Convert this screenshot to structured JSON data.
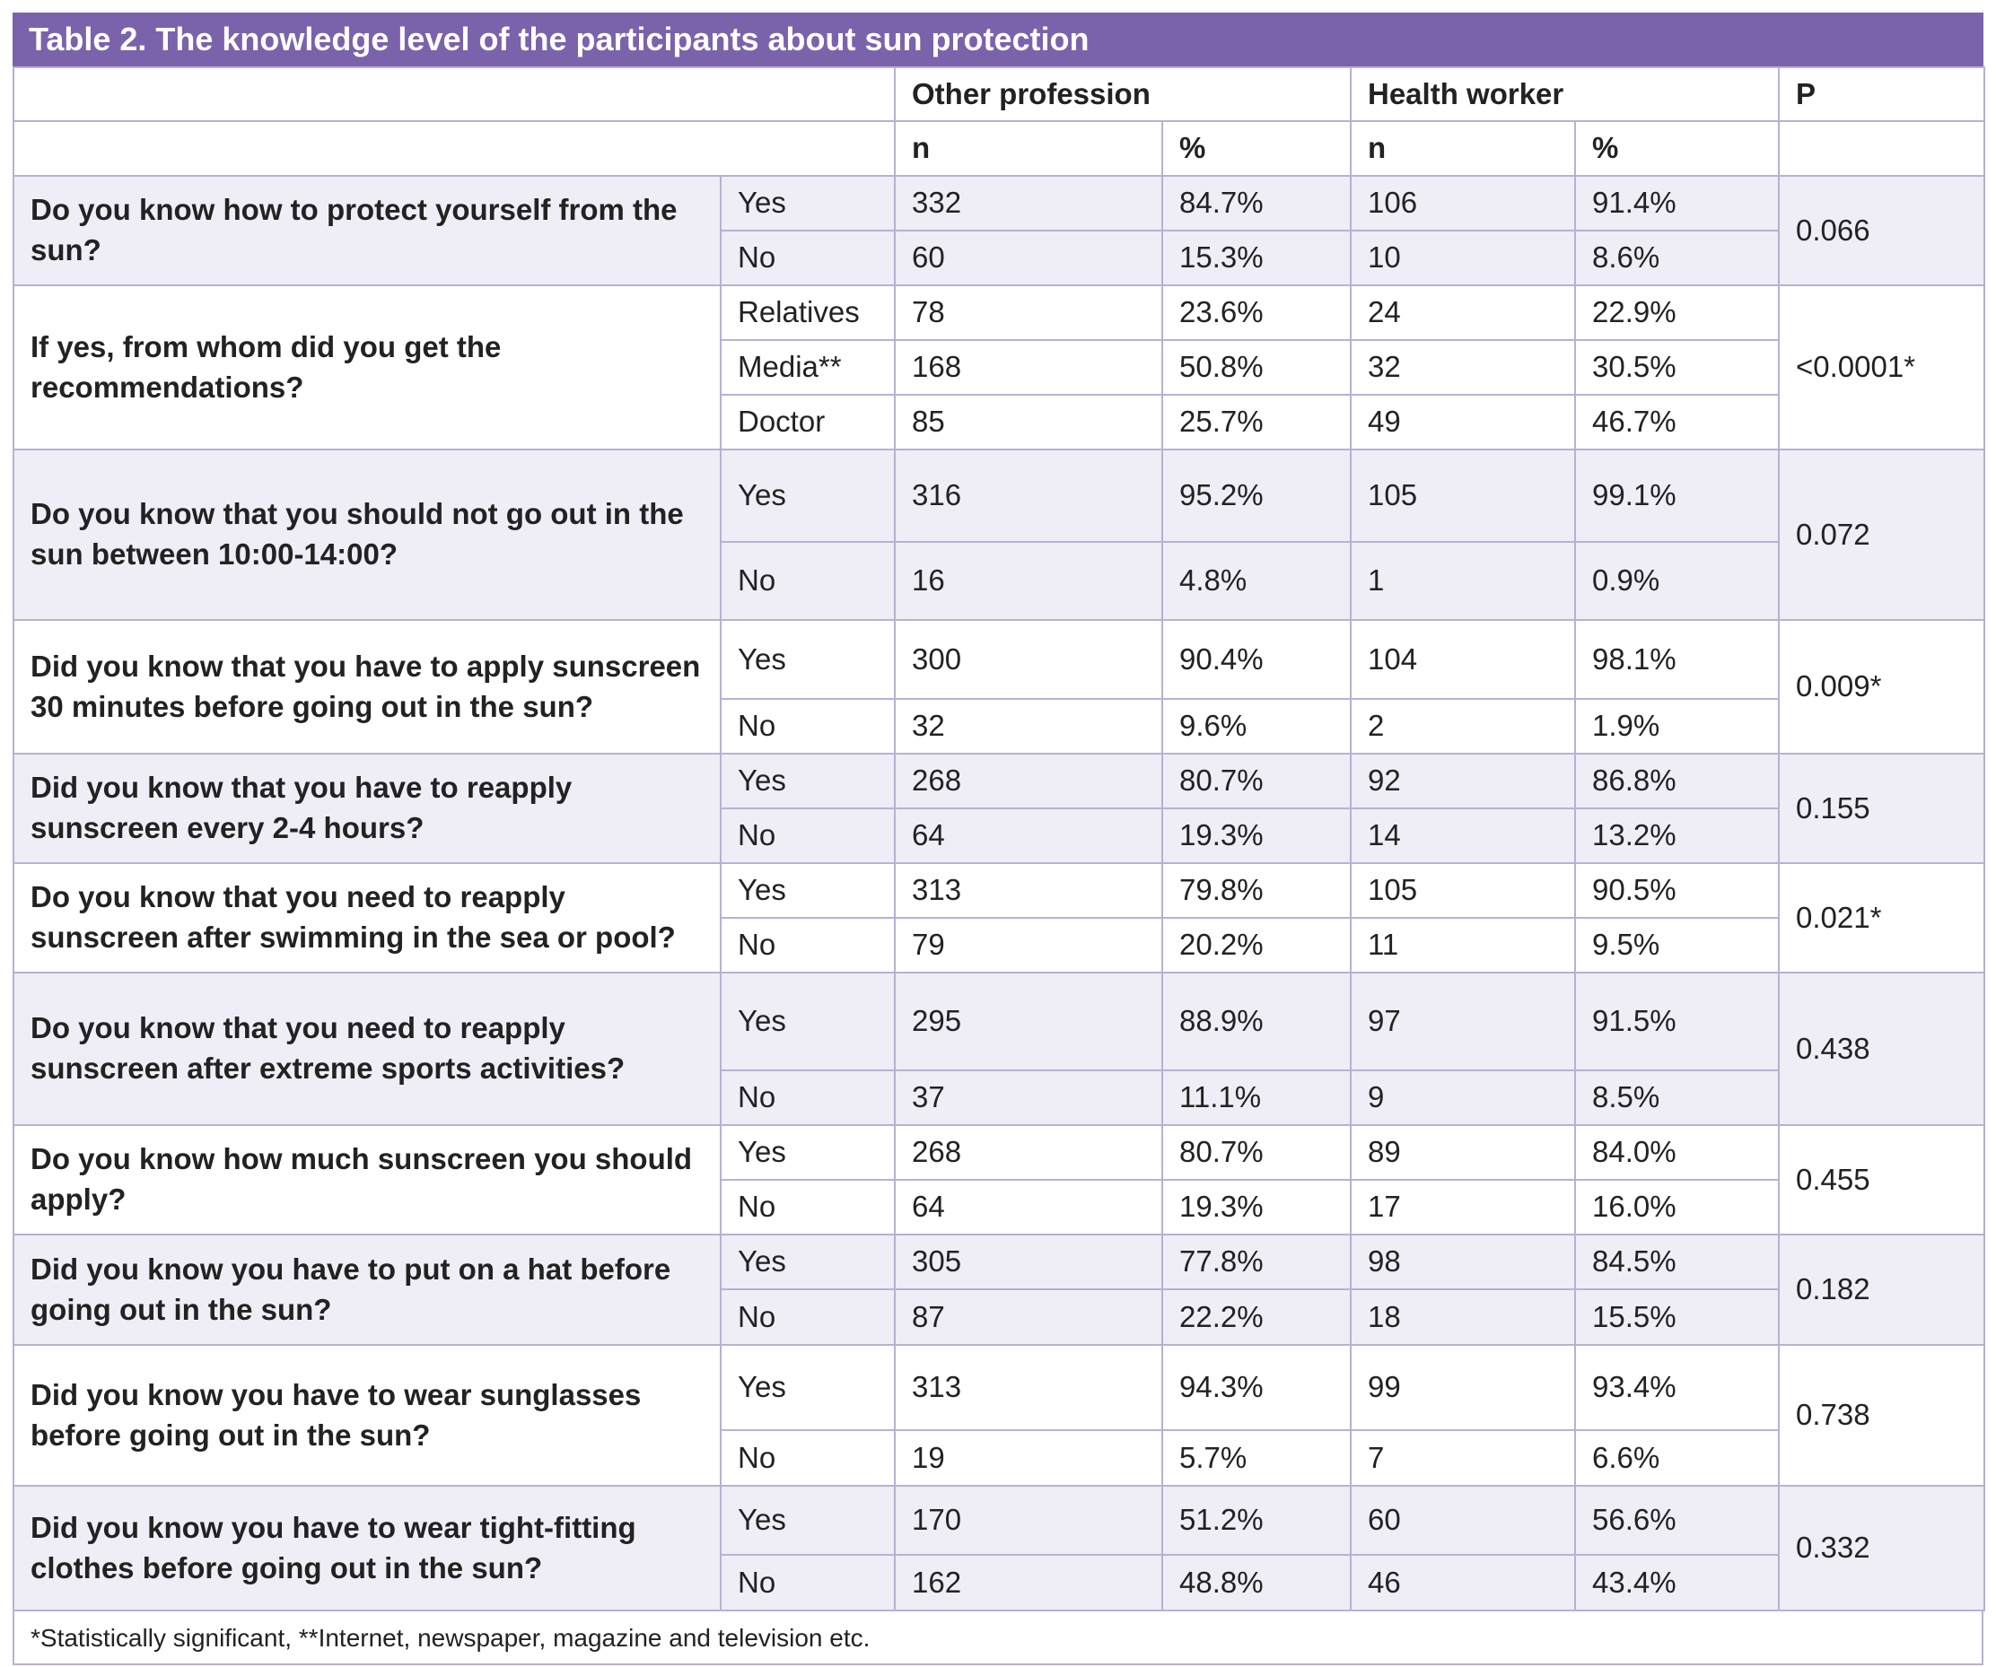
{
  "title": "Table 2. The knowledge level of the participants about sun protection",
  "header": {
    "group1": "Other profession",
    "group2": "Health worker",
    "p": "P",
    "n": "n",
    "pct": "%"
  },
  "rows": [
    {
      "question": "Do you know how to protect yourself from the sun?",
      "p": "0.066",
      "answers": [
        {
          "label": "Yes",
          "on": "332",
          "op": "84.7%",
          "hn": "106",
          "hp": "91.4%"
        },
        {
          "label": "No",
          "on": "60",
          "op": "15.3%",
          "hn": "10",
          "hp": "8.6%"
        }
      ]
    },
    {
      "question": "If yes, from whom did you get the recommendations?",
      "p": "<0.0001*",
      "answers": [
        {
          "label": "Relatives",
          "on": "78",
          "op": "23.6%",
          "hn": "24",
          "hp": "22.9%"
        },
        {
          "label": "Media**",
          "on": "168",
          "op": "50.8%",
          "hn": "32",
          "hp": "30.5%"
        },
        {
          "label": "Doctor",
          "on": "85",
          "op": "25.7%",
          "hn": "49",
          "hp": "46.7%"
        }
      ]
    },
    {
      "question": "Do you know that you should not go out in the sun between 10:00-14:00?",
      "p": "0.072",
      "answers": [
        {
          "label": "Yes",
          "on": "316",
          "op": "95.2%",
          "hn": "105",
          "hp": "99.1%"
        },
        {
          "label": "No",
          "on": "16",
          "op": "4.8%",
          "hn": "1",
          "hp": "0.9%"
        }
      ]
    },
    {
      "question": "Did you know that you have to apply sunscreen 30 minutes before going out in the sun?",
      "p": "0.009*",
      "answers": [
        {
          "label": "Yes",
          "on": "300",
          "op": "90.4%",
          "hn": "104",
          "hp": "98.1%"
        },
        {
          "label": "No",
          "on": "32",
          "op": "9.6%",
          "hn": "2",
          "hp": "1.9%"
        }
      ]
    },
    {
      "question": "Did you know that you have to reapply sunscreen every 2-4 hours?",
      "p": "0.155",
      "answers": [
        {
          "label": "Yes",
          "on": "268",
          "op": "80.7%",
          "hn": "92",
          "hp": "86.8%"
        },
        {
          "label": "No",
          "on": "64",
          "op": "19.3%",
          "hn": "14",
          "hp": "13.2%"
        }
      ]
    },
    {
      "question": "Do you know that you need to reapply sunscreen after swimming in the sea or pool?",
      "p": "0.021*",
      "answers": [
        {
          "label": "Yes",
          "on": "313",
          "op": "79.8%",
          "hn": "105",
          "hp": "90.5%"
        },
        {
          "label": "No",
          "on": "79",
          "op": "20.2%",
          "hn": "11",
          "hp": "9.5%"
        }
      ]
    },
    {
      "question": "Do you know that you need to reapply sunscreen after extreme sports activities?",
      "p": "0.438",
      "answers": [
        {
          "label": "Yes",
          "on": "295",
          "op": "88.9%",
          "hn": "97",
          "hp": "91.5%"
        },
        {
          "label": "No",
          "on": "37",
          "op": "11.1%",
          "hn": "9",
          "hp": "8.5%"
        }
      ]
    },
    {
      "question": "Do you know how much sunscreen you should apply?",
      "p": "0.455",
      "answers": [
        {
          "label": "Yes",
          "on": "268",
          "op": "80.7%",
          "hn": "89",
          "hp": "84.0%"
        },
        {
          "label": "No",
          "on": "64",
          "op": "19.3%",
          "hn": "17",
          "hp": "16.0%"
        }
      ]
    },
    {
      "question": "Did you know you have to put on a hat before going out in the sun?",
      "p": "0.182",
      "answers": [
        {
          "label": "Yes",
          "on": "305",
          "op": "77.8%",
          "hn": "98",
          "hp": "84.5%"
        },
        {
          "label": "No",
          "on": "87",
          "op": "22.2%",
          "hn": "18",
          "hp": "15.5%"
        }
      ]
    },
    {
      "question": "Did you know you have to wear sunglasses before going out in the sun?",
      "p": "0.738",
      "answers": [
        {
          "label": "Yes",
          "on": "313",
          "op": "94.3%",
          "hn": "99",
          "hp": "93.4%"
        },
        {
          "label": "No",
          "on": "19",
          "op": "5.7%",
          "hn": "7",
          "hp": "6.6%"
        }
      ]
    },
    {
      "question": "Did you know you have to wear tight-fitting clothes before going out in the sun?",
      "p": "0.332",
      "answers": [
        {
          "label": "Yes",
          "on": "170",
          "op": "51.2%",
          "hn": "60",
          "hp": "56.6%"
        },
        {
          "label": "No",
          "on": "162",
          "op": "48.8%",
          "hn": "46",
          "hp": "43.4%"
        }
      ]
    }
  ],
  "footnote": "*Statistically significant, **Internet, newspaper, magazine and television etc."
}
